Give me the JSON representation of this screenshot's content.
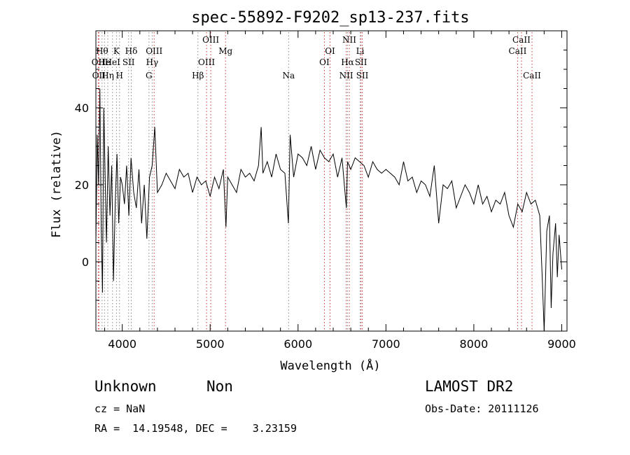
{
  "chart_data": {
    "type": "line",
    "title": "spec-55892-F9202_sp13-237.fits",
    "xlabel": "Wavelength (Å)",
    "ylabel": "Flux (relative)",
    "xlim": [
      3700,
      9060
    ],
    "ylim": [
      -18,
      60
    ],
    "xticks": [
      4000,
      5000,
      6000,
      7000,
      8000,
      9000
    ],
    "yticks": [
      0,
      20,
      40
    ],
    "grid": false,
    "line_color": "#000000",
    "marker_color": "#cc3333",
    "series": [
      {
        "x": [
          3700,
          3715,
          3730,
          3745,
          3760,
          3775,
          3790,
          3805,
          3820,
          3840,
          3860,
          3880,
          3900,
          3920,
          3940,
          3960,
          3980,
          4000,
          4025,
          4050,
          4075,
          4100,
          4130,
          4160,
          4190,
          4220,
          4250,
          4280,
          4310,
          4340,
          4370,
          4400,
          4450,
          4500,
          4550,
          4600,
          4650,
          4700,
          4750,
          4800,
          4850,
          4900,
          4950,
          5000,
          5050,
          5100,
          5150,
          5180,
          5200,
          5250,
          5300,
          5350,
          5400,
          5450,
          5500,
          5550,
          5580,
          5600,
          5650,
          5700,
          5750,
          5800,
          5850,
          5890,
          5910,
          5950,
          6000,
          6050,
          6100,
          6150,
          6200,
          6250,
          6300,
          6350,
          6400,
          6450,
          6500,
          6550,
          6563,
          6600,
          6650,
          6700,
          6750,
          6800,
          6850,
          6900,
          6950,
          7000,
          7050,
          7100,
          7150,
          7200,
          7250,
          7300,
          7350,
          7400,
          7450,
          7500,
          7550,
          7600,
          7650,
          7700,
          7750,
          7800,
          7850,
          7900,
          7950,
          8000,
          8050,
          8100,
          8150,
          8200,
          8250,
          8300,
          8350,
          8400,
          8450,
          8500,
          8550,
          8600,
          8650,
          8700,
          8750,
          8780,
          8800,
          8830,
          8860,
          8880,
          8900,
          8930,
          8950,
          8970,
          9000
        ],
        "y": [
          5,
          33,
          20,
          45,
          10,
          -8,
          40,
          22,
          5,
          30,
          12,
          25,
          -5,
          15,
          28,
          10,
          22,
          20,
          15,
          25,
          12,
          27,
          18,
          14,
          24,
          10,
          20,
          6,
          22,
          25,
          35,
          18,
          20,
          23,
          21,
          19,
          24,
          22,
          23,
          18,
          22,
          20,
          21,
          17,
          22,
          19,
          24,
          9,
          22,
          20,
          18,
          24,
          22,
          23,
          21,
          25,
          35,
          23,
          26,
          22,
          28,
          24,
          23,
          10,
          33,
          22,
          28,
          27,
          25,
          30,
          24,
          29,
          27,
          26,
          28,
          22,
          27,
          14,
          26,
          24,
          27,
          26,
          25,
          22,
          26,
          24,
          23,
          24,
          23,
          22,
          20,
          26,
          21,
          22,
          18,
          21,
          20,
          17,
          25,
          10,
          20,
          19,
          21,
          14,
          17,
          20,
          18,
          15,
          20,
          15,
          17,
          13,
          16,
          15,
          18,
          12,
          9,
          15,
          13,
          18,
          15,
          16,
          12,
          -5,
          -18,
          8,
          12,
          -12,
          2,
          10,
          -4,
          7,
          -2
        ]
      }
    ],
    "line_markers": [
      {
        "wavelength": 3727,
        "label": "OII",
        "color": "#cc3333",
        "row": 2
      },
      {
        "wavelength": 3734,
        "label": "OII",
        "color": "#cc3333",
        "row": 3
      },
      {
        "wavelength": 3770,
        "label": "Hθ",
        "color": "#888888",
        "row": 1
      },
      {
        "wavelength": 3798,
        "label": "He",
        "color": "#888888",
        "row": 2
      },
      {
        "wavelength": 3835,
        "label": "Hη",
        "color": "#888888",
        "row": 3
      },
      {
        "wavelength": 3889,
        "label": "HeI",
        "color": "#888888",
        "row": 2
      },
      {
        "wavelength": 3934,
        "label": "K",
        "color": "#888888",
        "row": 1
      },
      {
        "wavelength": 3969,
        "label": "H",
        "color": "#888888",
        "row": 3
      },
      {
        "wavelength": 4072,
        "label": "SII",
        "color": "#888888",
        "row": 2
      },
      {
        "wavelength": 4102,
        "label": "Hδ",
        "color": "#888888",
        "row": 1
      },
      {
        "wavelength": 4304,
        "label": "G",
        "color": "#888888",
        "row": 3
      },
      {
        "wavelength": 4340,
        "label": "Hγ",
        "color": "#888888",
        "row": 2
      },
      {
        "wavelength": 4363,
        "label": "OIII",
        "color": "#cc3333",
        "row": 1
      },
      {
        "wavelength": 4861,
        "label": "Hβ",
        "color": "#888888",
        "row": 3
      },
      {
        "wavelength": 4959,
        "label": "OIII",
        "color": "#cc3333",
        "row": 2
      },
      {
        "wavelength": 5007,
        "label": "OIII",
        "color": "#cc3333",
        "row": 0
      },
      {
        "wavelength": 5175,
        "label": "Mg",
        "color": "#cc3333",
        "row": 1
      },
      {
        "wavelength": 5893,
        "label": "Na",
        "color": "#888888",
        "row": 3
      },
      {
        "wavelength": 6300,
        "label": "OI",
        "color": "#cc3333",
        "row": 2
      },
      {
        "wavelength": 6364,
        "label": "OI",
        "color": "#cc3333",
        "row": 1
      },
      {
        "wavelength": 6548,
        "label": "NII",
        "color": "#cc3333",
        "row": 3
      },
      {
        "wavelength": 6563,
        "label": "Hα",
        "color": "#888888",
        "row": 2
      },
      {
        "wavelength": 6583,
        "label": "NII",
        "color": "#cc3333",
        "row": 0
      },
      {
        "wavelength": 6707,
        "label": "Li",
        "color": "#888888",
        "row": 1
      },
      {
        "wavelength": 6716,
        "label": "SII",
        "color": "#cc3333",
        "row": 2
      },
      {
        "wavelength": 6731,
        "label": "SII",
        "color": "#cc3333",
        "row": 3
      },
      {
        "wavelength": 8498,
        "label": "CaII",
        "color": "#cc3333",
        "row": 1
      },
      {
        "wavelength": 8542,
        "label": "CaII",
        "color": "#cc3333",
        "row": 0
      },
      {
        "wavelength": 8662,
        "label": "CaII",
        "color": "#cc3333",
        "row": 3
      }
    ]
  },
  "info": {
    "class": "Unknown",
    "subclass": "Non",
    "survey": "LAMOST DR2",
    "cz": "cz = NaN",
    "obs_date": "Obs-Date: 20111126",
    "radec": "RA =  14.19548, DEC =    3.23159"
  }
}
